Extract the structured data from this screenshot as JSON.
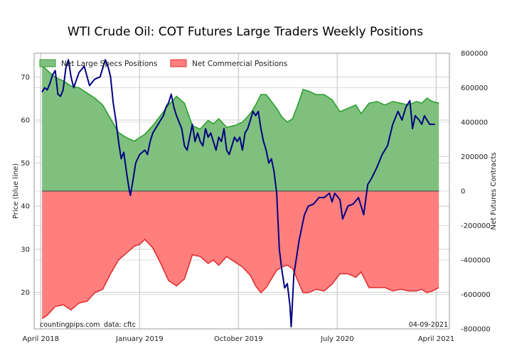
{
  "chart_data": {
    "type": "area",
    "title": "WTI Crude Oil: COT Futures Large Traders Weekly Positions",
    "left_axis": {
      "label": "Price (blue line)",
      "range": [
        11.5,
        75.5
      ],
      "ticks": [
        20,
        30,
        40,
        50,
        60,
        70
      ]
    },
    "right_axis": {
      "label": "Net Futures Contracts",
      "range": [
        -800000,
        800000
      ],
      "ticks": [
        800000,
        600000,
        400000,
        200000,
        0,
        -200000,
        -400000,
        -600000,
        -800000
      ],
      "tick_labels": [
        "800000",
        "600000",
        "400000",
        "200000",
        "0",
        "-200000",
        "-400000",
        "-600000",
        "-800000"
      ]
    },
    "x_axis": {
      "range": [
        2018.2,
        2021.35
      ],
      "ticks": [
        2018.25,
        2019.0,
        2019.75,
        2020.5,
        2021.25
      ],
      "tick_labels": [
        "April 2018",
        "January 2019",
        "October 2019",
        "July 2020",
        "April 2021"
      ]
    },
    "grid": true,
    "legend": {
      "position": "top-left",
      "entries": [
        "Net Large Specs Positions",
        "Net Commercial Positions"
      ]
    },
    "series": [
      {
        "name": "Net Large Specs Positions",
        "axis": "right",
        "color": "#2ca02c",
        "points": [
          [
            2018.26,
            730000
          ],
          [
            2018.3,
            700000
          ],
          [
            2018.36,
            660000
          ],
          [
            2018.42,
            640000
          ],
          [
            2018.48,
            610000
          ],
          [
            2018.54,
            600000
          ],
          [
            2018.6,
            570000
          ],
          [
            2018.66,
            540000
          ],
          [
            2018.72,
            500000
          ],
          [
            2018.78,
            420000
          ],
          [
            2018.84,
            340000
          ],
          [
            2018.9,
            310000
          ],
          [
            2018.96,
            290000
          ],
          [
            2019.0,
            310000
          ],
          [
            2019.04,
            330000
          ],
          [
            2019.1,
            380000
          ],
          [
            2019.16,
            440000
          ],
          [
            2019.22,
            500000
          ],
          [
            2019.28,
            550000
          ],
          [
            2019.34,
            510000
          ],
          [
            2019.4,
            380000
          ],
          [
            2019.46,
            360000
          ],
          [
            2019.52,
            410000
          ],
          [
            2019.56,
            390000
          ],
          [
            2019.6,
            420000
          ],
          [
            2019.66,
            370000
          ],
          [
            2019.72,
            380000
          ],
          [
            2019.78,
            400000
          ],
          [
            2019.84,
            450000
          ],
          [
            2019.88,
            500000
          ],
          [
            2019.92,
            560000
          ],
          [
            2019.96,
            560000
          ],
          [
            2020.0,
            520000
          ],
          [
            2020.04,
            480000
          ],
          [
            2020.08,
            430000
          ],
          [
            2020.12,
            400000
          ],
          [
            2020.16,
            420000
          ],
          [
            2020.2,
            500000
          ],
          [
            2020.24,
            590000
          ],
          [
            2020.28,
            580000
          ],
          [
            2020.34,
            560000
          ],
          [
            2020.4,
            560000
          ],
          [
            2020.46,
            530000
          ],
          [
            2020.52,
            460000
          ],
          [
            2020.58,
            480000
          ],
          [
            2020.64,
            500000
          ],
          [
            2020.68,
            450000
          ],
          [
            2020.74,
            510000
          ],
          [
            2020.8,
            520000
          ],
          [
            2020.86,
            500000
          ],
          [
            2020.92,
            520000
          ],
          [
            2020.98,
            510000
          ],
          [
            2021.04,
            500000
          ],
          [
            2021.1,
            520000
          ],
          [
            2021.14,
            510000
          ],
          [
            2021.18,
            540000
          ],
          [
            2021.22,
            520000
          ],
          [
            2021.27,
            510000
          ]
        ]
      },
      {
        "name": "Net Commercial Positions",
        "axis": "right",
        "color": "#ff0000",
        "points": [
          [
            2018.26,
            -740000
          ],
          [
            2018.3,
            -720000
          ],
          [
            2018.36,
            -670000
          ],
          [
            2018.42,
            -660000
          ],
          [
            2018.48,
            -690000
          ],
          [
            2018.54,
            -650000
          ],
          [
            2018.6,
            -640000
          ],
          [
            2018.66,
            -590000
          ],
          [
            2018.72,
            -570000
          ],
          [
            2018.78,
            -480000
          ],
          [
            2018.84,
            -400000
          ],
          [
            2018.9,
            -360000
          ],
          [
            2018.96,
            -320000
          ],
          [
            2019.0,
            -310000
          ],
          [
            2019.04,
            -280000
          ],
          [
            2019.1,
            -330000
          ],
          [
            2019.16,
            -420000
          ],
          [
            2019.22,
            -520000
          ],
          [
            2019.28,
            -550000
          ],
          [
            2019.34,
            -510000
          ],
          [
            2019.4,
            -370000
          ],
          [
            2019.46,
            -380000
          ],
          [
            2019.52,
            -420000
          ],
          [
            2019.56,
            -400000
          ],
          [
            2019.6,
            -430000
          ],
          [
            2019.66,
            -380000
          ],
          [
            2019.72,
            -410000
          ],
          [
            2019.78,
            -440000
          ],
          [
            2019.84,
            -490000
          ],
          [
            2019.88,
            -550000
          ],
          [
            2019.92,
            -590000
          ],
          [
            2019.96,
            -560000
          ],
          [
            2020.0,
            -510000
          ],
          [
            2020.04,
            -460000
          ],
          [
            2020.08,
            -440000
          ],
          [
            2020.12,
            -430000
          ],
          [
            2020.16,
            -450000
          ],
          [
            2020.2,
            -520000
          ],
          [
            2020.24,
            -590000
          ],
          [
            2020.28,
            -590000
          ],
          [
            2020.34,
            -570000
          ],
          [
            2020.4,
            -580000
          ],
          [
            2020.46,
            -540000
          ],
          [
            2020.52,
            -480000
          ],
          [
            2020.58,
            -480000
          ],
          [
            2020.64,
            -500000
          ],
          [
            2020.68,
            -470000
          ],
          [
            2020.74,
            -560000
          ],
          [
            2020.8,
            -560000
          ],
          [
            2020.86,
            -560000
          ],
          [
            2020.92,
            -580000
          ],
          [
            2020.98,
            -570000
          ],
          [
            2021.04,
            -580000
          ],
          [
            2021.1,
            -580000
          ],
          [
            2021.14,
            -570000
          ],
          [
            2021.18,
            -590000
          ],
          [
            2021.22,
            -580000
          ],
          [
            2021.27,
            -560000
          ]
        ]
      },
      {
        "name": "Price",
        "axis": "left",
        "color": "#000080",
        "points": [
          [
            2018.26,
            66.5
          ],
          [
            2018.28,
            67.5
          ],
          [
            2018.3,
            67
          ],
          [
            2018.32,
            68.5
          ],
          [
            2018.34,
            70.5
          ],
          [
            2018.36,
            71.5
          ],
          [
            2018.38,
            66
          ],
          [
            2018.4,
            65.5
          ],
          [
            2018.42,
            67
          ],
          [
            2018.44,
            72
          ],
          [
            2018.46,
            74
          ],
          [
            2018.48,
            70
          ],
          [
            2018.5,
            67.5
          ],
          [
            2018.54,
            71
          ],
          [
            2018.58,
            72.5
          ],
          [
            2018.62,
            68
          ],
          [
            2018.66,
            69.5
          ],
          [
            2018.7,
            70
          ],
          [
            2018.74,
            74
          ],
          [
            2018.76,
            72.5
          ],
          [
            2018.78,
            70
          ],
          [
            2018.8,
            64
          ],
          [
            2018.82,
            60
          ],
          [
            2018.84,
            55
          ],
          [
            2018.86,
            51
          ],
          [
            2018.88,
            52.5
          ],
          [
            2018.9,
            48
          ],
          [
            2018.92,
            44
          ],
          [
            2018.93,
            42.5
          ],
          [
            2018.95,
            46
          ],
          [
            2018.97,
            50
          ],
          [
            2019.0,
            52
          ],
          [
            2019.04,
            53
          ],
          [
            2019.06,
            52
          ],
          [
            2019.08,
            55
          ],
          [
            2019.1,
            57
          ],
          [
            2019.12,
            58
          ],
          [
            2019.14,
            59
          ],
          [
            2019.18,
            61
          ],
          [
            2019.2,
            63
          ],
          [
            2019.22,
            64
          ],
          [
            2019.24,
            66
          ],
          [
            2019.26,
            63
          ],
          [
            2019.28,
            61
          ],
          [
            2019.32,
            58
          ],
          [
            2019.34,
            54
          ],
          [
            2019.36,
            53
          ],
          [
            2019.38,
            56
          ],
          [
            2019.4,
            59
          ],
          [
            2019.42,
            55
          ],
          [
            2019.44,
            57
          ],
          [
            2019.46,
            55
          ],
          [
            2019.48,
            54
          ],
          [
            2019.5,
            58
          ],
          [
            2019.52,
            56
          ],
          [
            2019.54,
            57
          ],
          [
            2019.56,
            55
          ],
          [
            2019.58,
            53
          ],
          [
            2019.6,
            56
          ],
          [
            2019.62,
            55
          ],
          [
            2019.64,
            58
          ],
          [
            2019.66,
            53
          ],
          [
            2019.68,
            52
          ],
          [
            2019.7,
            54
          ],
          [
            2019.72,
            56
          ],
          [
            2019.74,
            55
          ],
          [
            2019.76,
            56
          ],
          [
            2019.78,
            53
          ],
          [
            2019.8,
            57
          ],
          [
            2019.82,
            58
          ],
          [
            2019.84,
            60
          ],
          [
            2019.86,
            62
          ],
          [
            2019.88,
            61
          ],
          [
            2019.9,
            62
          ],
          [
            2019.92,
            58
          ],
          [
            2019.94,
            55
          ],
          [
            2019.96,
            53
          ],
          [
            2019.98,
            50
          ],
          [
            2020.0,
            51
          ],
          [
            2020.02,
            48
          ],
          [
            2020.04,
            43
          ],
          [
            2020.06,
            30
          ],
          [
            2020.08,
            25
          ],
          [
            2020.1,
            21
          ],
          [
            2020.12,
            22
          ],
          [
            2020.14,
            17
          ],
          [
            2020.15,
            12
          ],
          [
            2020.17,
            24
          ],
          [
            2020.19,
            28
          ],
          [
            2020.21,
            32
          ],
          [
            2020.25,
            38
          ],
          [
            2020.28,
            40
          ],
          [
            2020.32,
            40.5
          ],
          [
            2020.36,
            42
          ],
          [
            2020.4,
            42
          ],
          [
            2020.44,
            43
          ],
          [
            2020.46,
            41
          ],
          [
            2020.48,
            43
          ],
          [
            2020.52,
            41.5
          ],
          [
            2020.54,
            37
          ],
          [
            2020.58,
            40
          ],
          [
            2020.62,
            40.5
          ],
          [
            2020.66,
            42
          ],
          [
            2020.7,
            38
          ],
          [
            2020.73,
            45
          ],
          [
            2020.76,
            46.5
          ],
          [
            2020.8,
            49
          ],
          [
            2020.84,
            52
          ],
          [
            2020.88,
            54
          ],
          [
            2020.92,
            59
          ],
          [
            2020.96,
            62
          ],
          [
            2020.99,
            60
          ],
          [
            2021.02,
            63
          ],
          [
            2021.05,
            64.5
          ],
          [
            2021.07,
            58
          ],
          [
            2021.09,
            61
          ],
          [
            2021.12,
            60
          ],
          [
            2021.14,
            59
          ],
          [
            2021.16,
            61
          ],
          [
            2021.18,
            60
          ],
          [
            2021.2,
            59
          ],
          [
            2021.24,
            59
          ]
        ]
      }
    ]
  },
  "notes": {
    "source_left": "countingpips.com",
    "source_data": "data: cftc",
    "date": "04-09-2021"
  }
}
